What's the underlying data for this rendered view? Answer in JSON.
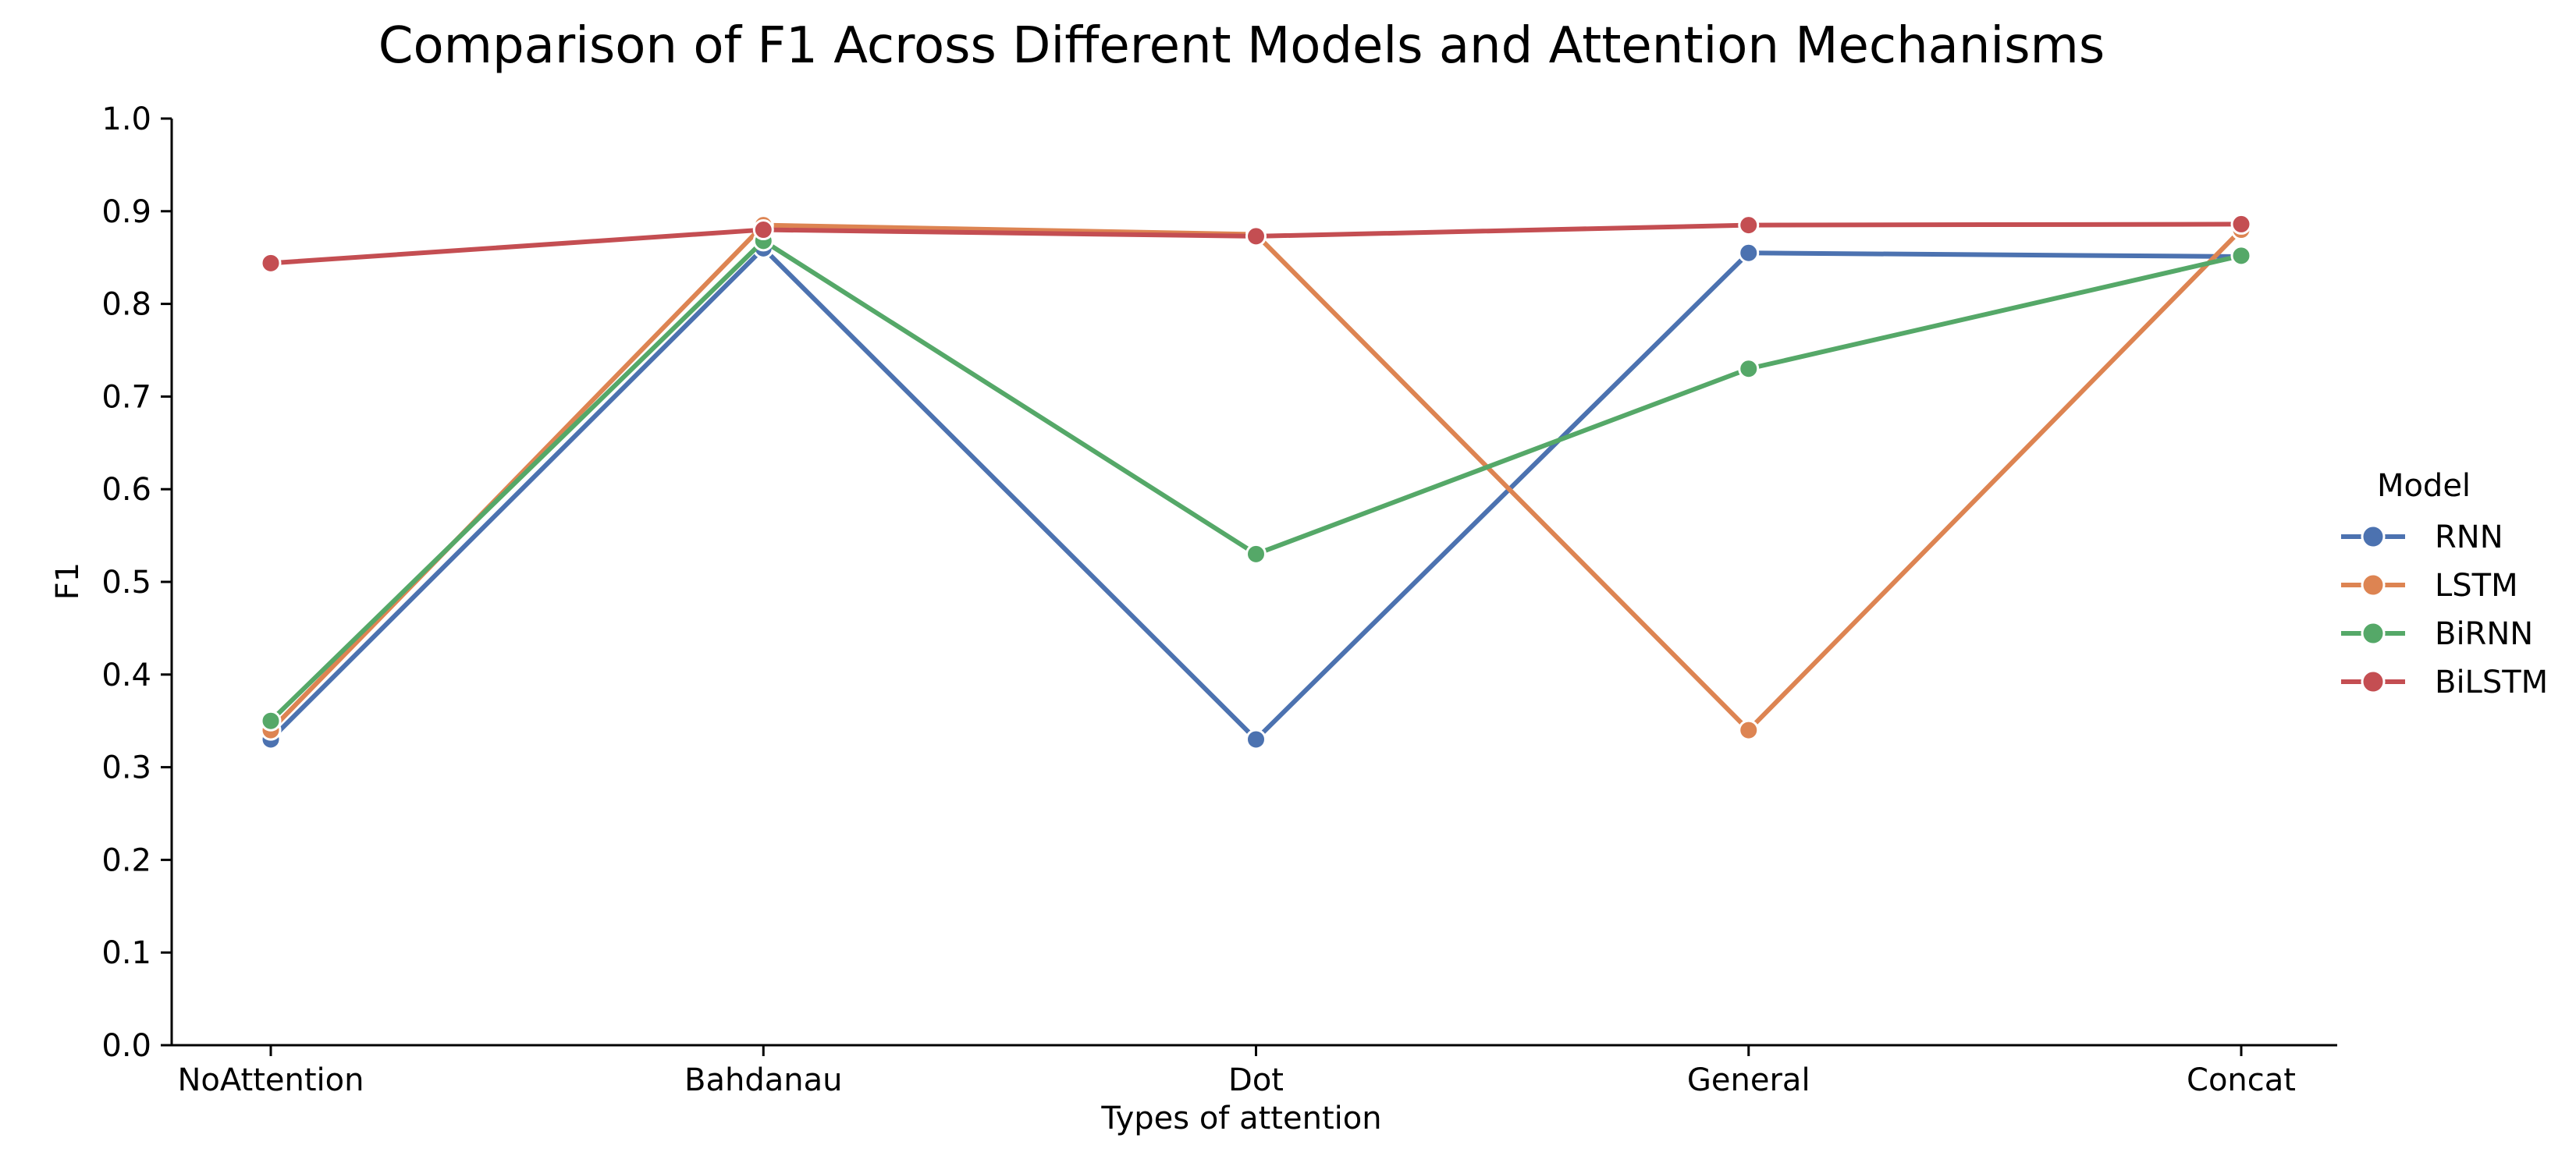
{
  "chart_data": {
    "type": "line",
    "title": "Comparison of F1 Across Different Models and Attention Mechanisms",
    "xlabel": "Types of attention",
    "ylabel": "F1",
    "categories": [
      "NoAttention",
      "Bahdanau",
      "Dot",
      "General",
      "Concat"
    ],
    "ylim": [
      0.0,
      1.0
    ],
    "yticks": [
      "0.0",
      "0.1",
      "0.2",
      "0.3",
      "0.4",
      "0.5",
      "0.6",
      "0.7",
      "0.8",
      "0.9",
      "1.0"
    ],
    "grid": false,
    "legend": {
      "title": "Model",
      "placement": "right"
    },
    "series": [
      {
        "name": "RNN",
        "color": "#4c72b0",
        "values": [
          0.33,
          0.86,
          0.33,
          0.855,
          0.851
        ]
      },
      {
        "name": "LSTM",
        "color": "#dd8452",
        "values": [
          0.34,
          0.885,
          0.875,
          0.34,
          0.88
        ]
      },
      {
        "name": "BiRNN",
        "color": "#55a868",
        "values": [
          0.35,
          0.868,
          0.53,
          0.73,
          0.852
        ]
      },
      {
        "name": "BiLSTM",
        "color": "#c44e52",
        "values": [
          0.844,
          0.88,
          0.873,
          0.885,
          0.886
        ]
      }
    ]
  }
}
